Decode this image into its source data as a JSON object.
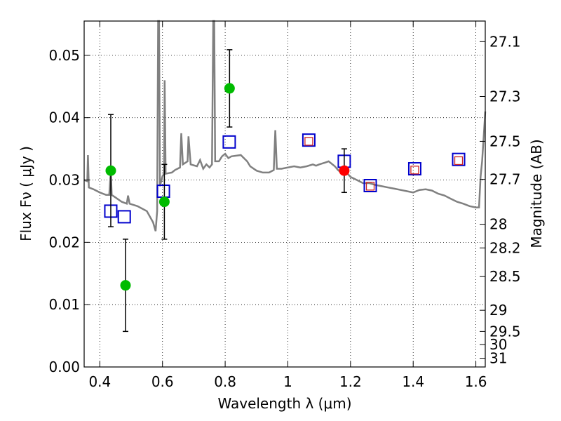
{
  "chart_data": {
    "type": "scatter",
    "xlabel": "Wavelength  λ (μm)",
    "ylabel": "Flux  Fν  ( μJy )",
    "ylabel_right": "Magnitude (AB)",
    "xlim": [
      0.35,
      1.63
    ],
    "ylim": [
      0.0,
      0.0555
    ],
    "grid": true,
    "x_ticks": [
      0.4,
      0.6,
      0.8,
      1.0,
      1.2,
      1.4,
      1.6
    ],
    "x_tick_labels": [
      "0.4",
      "0.6",
      "0.8",
      "1",
      "1.2",
      "1.4",
      "1.6"
    ],
    "y_ticks": [
      0.0,
      0.01,
      0.02,
      0.03,
      0.04,
      0.05
    ],
    "y_tick_labels": [
      "0.00",
      "0.01",
      "0.02",
      "0.03",
      "0.04",
      "0.05"
    ],
    "right_ticks": [
      {
        "label": "27.1",
        "flux": 0.0522
      },
      {
        "label": "27.3",
        "flux": 0.0434
      },
      {
        "label": "27.5",
        "flux": 0.0362
      },
      {
        "label": "27.7",
        "flux": 0.0301
      },
      {
        "label": "28",
        "flux": 0.0229
      },
      {
        "label": "28.2",
        "flux": 0.0191
      },
      {
        "label": "28.5",
        "flux": 0.0145
      },
      {
        "label": "29",
        "flux": 0.0091
      },
      {
        "label": "29.5",
        "flux": 0.0057
      },
      {
        "label": "30",
        "flux": 0.0036
      },
      {
        "label": "31",
        "flux": 0.0014
      }
    ],
    "series": [
      {
        "name": "model spectrum",
        "kind": "line",
        "color": "#808080",
        "points": [
          [
            0.35,
            0.03
          ],
          [
            0.36,
            0.0298
          ],
          [
            0.362,
            0.034
          ],
          [
            0.365,
            0.0288
          ],
          [
            0.38,
            0.0285
          ],
          [
            0.4,
            0.028
          ],
          [
            0.42,
            0.0276
          ],
          [
            0.43,
            0.0276
          ],
          [
            0.435,
            0.0315
          ],
          [
            0.438,
            0.0276
          ],
          [
            0.45,
            0.0272
          ],
          [
            0.47,
            0.0265
          ],
          [
            0.486,
            0.0262
          ],
          [
            0.49,
            0.0275
          ],
          [
            0.495,
            0.0262
          ],
          [
            0.52,
            0.0258
          ],
          [
            0.55,
            0.025
          ],
          [
            0.57,
            0.0232
          ],
          [
            0.578,
            0.0218
          ],
          [
            0.583,
            0.025
          ],
          [
            0.586,
            0.056
          ],
          [
            0.589,
            0.056
          ],
          [
            0.592,
            0.029
          ],
          [
            0.6,
            0.0306
          ],
          [
            0.605,
            0.031
          ],
          [
            0.607,
            0.046
          ],
          [
            0.61,
            0.031
          ],
          [
            0.62,
            0.0311
          ],
          [
            0.63,
            0.0312
          ],
          [
            0.64,
            0.0316
          ],
          [
            0.656,
            0.032
          ],
          [
            0.66,
            0.0375
          ],
          [
            0.665,
            0.0325
          ],
          [
            0.68,
            0.033
          ],
          [
            0.683,
            0.037
          ],
          [
            0.69,
            0.0325
          ],
          [
            0.71,
            0.0322
          ],
          [
            0.72,
            0.0332
          ],
          [
            0.73,
            0.0318
          ],
          [
            0.74,
            0.0325
          ],
          [
            0.75,
            0.032
          ],
          [
            0.758,
            0.0325
          ],
          [
            0.762,
            0.056
          ],
          [
            0.765,
            0.056
          ],
          [
            0.768,
            0.033
          ],
          [
            0.78,
            0.033
          ],
          [
            0.79,
            0.0338
          ],
          [
            0.8,
            0.0342
          ],
          [
            0.81,
            0.0335
          ],
          [
            0.82,
            0.0338
          ],
          [
            0.85,
            0.034
          ],
          [
            0.87,
            0.033
          ],
          [
            0.88,
            0.0322
          ],
          [
            0.9,
            0.0315
          ],
          [
            0.92,
            0.0312
          ],
          [
            0.94,
            0.0312
          ],
          [
            0.955,
            0.0316
          ],
          [
            0.96,
            0.038
          ],
          [
            0.965,
            0.0318
          ],
          [
            0.98,
            0.0318
          ],
          [
            1.0,
            0.032
          ],
          [
            1.02,
            0.0322
          ],
          [
            1.04,
            0.032
          ],
          [
            1.06,
            0.0322
          ],
          [
            1.08,
            0.0325
          ],
          [
            1.09,
            0.0323
          ],
          [
            1.1,
            0.0325
          ],
          [
            1.12,
            0.0328
          ],
          [
            1.13,
            0.033
          ],
          [
            1.14,
            0.0326
          ],
          [
            1.15,
            0.0322
          ],
          [
            1.16,
            0.0316
          ],
          [
            1.17,
            0.0312
          ],
          [
            1.18,
            0.0316
          ],
          [
            1.2,
            0.0305
          ],
          [
            1.22,
            0.03
          ],
          [
            1.24,
            0.0295
          ],
          [
            1.26,
            0.0295
          ],
          [
            1.28,
            0.0292
          ],
          [
            1.3,
            0.029
          ],
          [
            1.32,
            0.0288
          ],
          [
            1.34,
            0.0286
          ],
          [
            1.36,
            0.0284
          ],
          [
            1.38,
            0.0282
          ],
          [
            1.4,
            0.028
          ],
          [
            1.42,
            0.0284
          ],
          [
            1.44,
            0.0285
          ],
          [
            1.46,
            0.0283
          ],
          [
            1.48,
            0.0278
          ],
          [
            1.5,
            0.0275
          ],
          [
            1.52,
            0.027
          ],
          [
            1.54,
            0.0265
          ],
          [
            1.56,
            0.0262
          ],
          [
            1.58,
            0.0258
          ],
          [
            1.6,
            0.0256
          ],
          [
            1.61,
            0.0256
          ],
          [
            1.615,
            0.0305
          ],
          [
            1.62,
            0.033
          ],
          [
            1.625,
            0.037
          ],
          [
            1.63,
            0.041
          ]
        ]
      },
      {
        "name": "photometry (green)",
        "kind": "markers",
        "marker": "circle",
        "color": "#00bb00",
        "points": [
          {
            "x": 0.435,
            "y": 0.0315,
            "err_lo": 0.009,
            "err_hi": 0.009
          },
          {
            "x": 0.482,
            "y": 0.0131,
            "err_lo": 0.0074,
            "err_hi": 0.0074
          },
          {
            "x": 0.606,
            "y": 0.0265,
            "err_lo": 0.006,
            "err_hi": 0.006
          },
          {
            "x": 0.814,
            "y": 0.0447,
            "err_lo": 0.0062,
            "err_hi": 0.0062
          }
        ]
      },
      {
        "name": "photometry (red)",
        "kind": "markers",
        "marker": "circle",
        "color": "#ff0000",
        "points": [
          {
            "x": 1.18,
            "y": 0.0315,
            "err_lo": 0.0035,
            "err_hi": 0.0035
          }
        ]
      },
      {
        "name": "model photometry (blue squares)",
        "kind": "markers",
        "marker": "square",
        "color": "#0000cc",
        "points": [
          {
            "x": 0.435,
            "y": 0.025
          },
          {
            "x": 0.478,
            "y": 0.0241
          },
          {
            "x": 0.603,
            "y": 0.0282
          },
          {
            "x": 0.813,
            "y": 0.0361
          },
          {
            "x": 1.067,
            "y": 0.0364
          },
          {
            "x": 1.18,
            "y": 0.033
          },
          {
            "x": 1.263,
            "y": 0.0291
          },
          {
            "x": 1.405,
            "y": 0.0318
          },
          {
            "x": 1.545,
            "y": 0.0333
          }
        ]
      },
      {
        "name": "synthetic photometry (small red squares)",
        "kind": "markers",
        "marker": "square-small",
        "color": "#cc2222",
        "points": [
          {
            "x": 1.067,
            "y": 0.0362
          },
          {
            "x": 1.263,
            "y": 0.029
          },
          {
            "x": 1.405,
            "y": 0.0316
          },
          {
            "x": 1.545,
            "y": 0.0331
          }
        ]
      }
    ]
  }
}
